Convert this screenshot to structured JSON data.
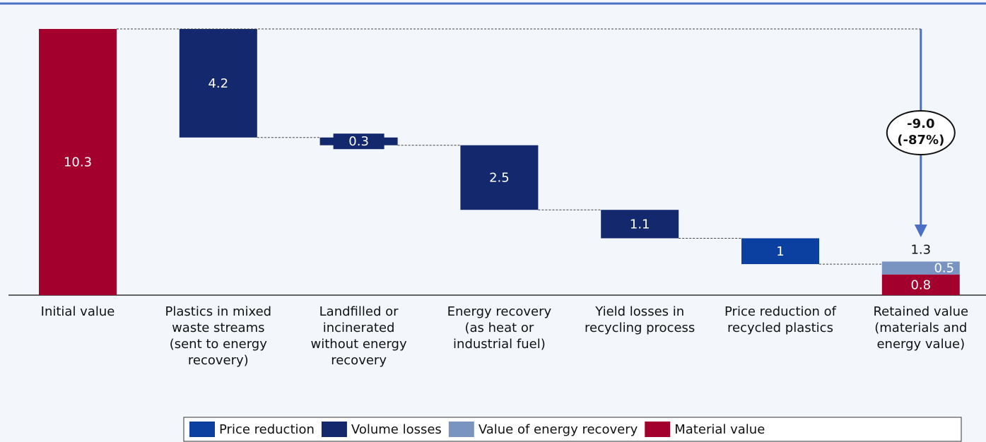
{
  "chart_data": {
    "type": "waterfall",
    "categories": [
      "Initial value",
      "Plastics in mixed waste streams (sent to energy recovery)",
      "Landfilled or incinerated without energy recovery",
      "Energy recovery (as heat or industrial fuel)",
      "Yield losses in recycling process",
      "Price reduction of recycled plastics",
      "Retained value (materials and energy value)"
    ],
    "measures": [
      "absolute",
      "relative",
      "relative",
      "relative",
      "relative",
      "relative",
      "absolute"
    ],
    "series": [
      {
        "name": "Price reduction",
        "color": "#0b3fa0",
        "values": [
          null,
          null,
          null,
          null,
          null,
          1.0,
          null
        ]
      },
      {
        "name": "Volume losses",
        "color": "#14286e",
        "values": [
          null,
          4.2,
          0.3,
          2.5,
          1.1,
          null,
          null
        ]
      },
      {
        "name": "Value of energy recovery",
        "color": "#7a94c2",
        "values": [
          null,
          null,
          null,
          null,
          null,
          null,
          0.5
        ]
      },
      {
        "name": "Material value",
        "color": "#a3002e",
        "values": [
          10.3,
          null,
          null,
          null,
          null,
          null,
          0.8
        ]
      }
    ],
    "totals": [
      null,
      null,
      null,
      null,
      null,
      null,
      1.3
    ],
    "annotation": {
      "value": "-9.0",
      "percent": "(-87%)"
    }
  }
}
